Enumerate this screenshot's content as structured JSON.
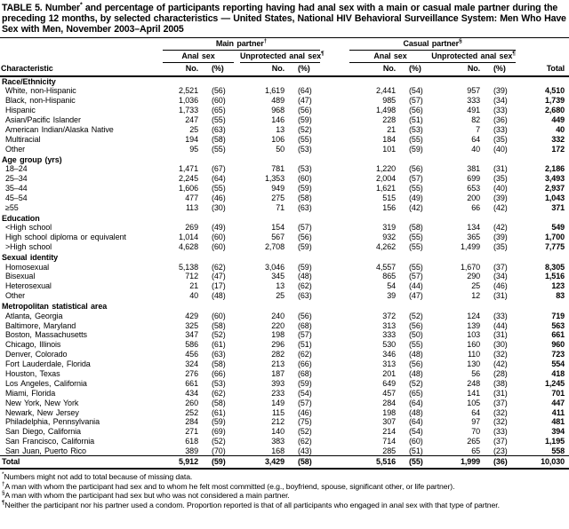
{
  "title": {
    "part1": "TABLE 5. Number",
    "sup": "*",
    "part2": " and percentage of participants reporting having had anal sex with a main or casual male partner during the preceding 12 months, by selected characteristics — United States, National HIV Behavioral Surveillance System: Men Who Have Sex with Men, November 2003–April 2005"
  },
  "table": {
    "characteristic_header": "Characteristic",
    "total_header": "Total",
    "number_header": "No.",
    "percent_header": "(%)",
    "groups": [
      {
        "label": "Main partner",
        "sup": "†"
      },
      {
        "label": "Casual partner",
        "sup": "§"
      }
    ],
    "subgroups": [
      {
        "label": "Anal sex",
        "sup": ""
      },
      {
        "label": "Unprotected anal sex",
        "sup": "¶"
      },
      {
        "label": "Anal sex",
        "sup": ""
      },
      {
        "label": "Unprotected anal sex",
        "sup": "¶"
      }
    ],
    "sections": [
      {
        "name": "Race/Ethnicity",
        "rows": [
          {
            "label": "White, non-Hispanic",
            "values": [
              "2,521",
              "(56)",
              "1,619",
              "(64)",
              "2,441",
              "(54)",
              "957",
              "(39)",
              "4,510"
            ]
          },
          {
            "label": "Black, non-Hispanic",
            "values": [
              "1,036",
              "(60)",
              "489",
              "(47)",
              "985",
              "(57)",
              "333",
              "(34)",
              "1,739"
            ]
          },
          {
            "label": "Hispanic",
            "values": [
              "1,733",
              "(65)",
              "968",
              "(56)",
              "1,498",
              "(56)",
              "491",
              "(33)",
              "2,680"
            ]
          },
          {
            "label": "Asian/Pacific Islander",
            "values": [
              "247",
              "(55)",
              "146",
              "(59)",
              "228",
              "(51)",
              "82",
              "(36)",
              "449"
            ]
          },
          {
            "label": "American Indian/Alaska Native",
            "values": [
              "25",
              "(63)",
              "13",
              "(52)",
              "21",
              "(53)",
              "7",
              "(33)",
              "40"
            ]
          },
          {
            "label": "Multiracial",
            "values": [
              "194",
              "(58)",
              "106",
              "(55)",
              "184",
              "(55)",
              "64",
              "(35)",
              "332"
            ]
          },
          {
            "label": "Other",
            "values": [
              "95",
              "(55)",
              "50",
              "(53)",
              "101",
              "(59)",
              "40",
              "(40)",
              "172"
            ]
          }
        ]
      },
      {
        "name": "Age group (yrs)",
        "rows": [
          {
            "label": "18–24",
            "values": [
              "1,471",
              "(67)",
              "781",
              "(53)",
              "1,220",
              "(56)",
              "381",
              "(31)",
              "2,186"
            ]
          },
          {
            "label": "25–34",
            "values": [
              "2,245",
              "(64)",
              "1,353",
              "(60)",
              "2,004",
              "(57)",
              "699",
              "(35)",
              "3,493"
            ]
          },
          {
            "label": "35–44",
            "values": [
              "1,606",
              "(55)",
              "949",
              "(59)",
              "1,621",
              "(55)",
              "653",
              "(40)",
              "2,937"
            ]
          },
          {
            "label": "45–54",
            "values": [
              "477",
              "(46)",
              "275",
              "(58)",
              "515",
              "(49)",
              "200",
              "(39)",
              "1,043"
            ]
          },
          {
            "label": "≥55",
            "values": [
              "113",
              "(30)",
              "71",
              "(63)",
              "156",
              "(42)",
              "66",
              "(42)",
              "371"
            ]
          }
        ]
      },
      {
        "name": "Education",
        "rows": [
          {
            "label": "<High school",
            "values": [
              "269",
              "(49)",
              "154",
              "(57)",
              "319",
              "(58)",
              "134",
              "(42)",
              "549"
            ]
          },
          {
            "label": "High school diploma or equivalent",
            "values": [
              "1,014",
              "(60)",
              "567",
              "(56)",
              "932",
              "(55)",
              "365",
              "(39)",
              "1,700"
            ]
          },
          {
            "label": ">High school",
            "values": [
              "4,628",
              "(60)",
              "2,708",
              "(59)",
              "4,262",
              "(55)",
              "1,499",
              "(35)",
              "7,775"
            ]
          }
        ]
      },
      {
        "name": "Sexual identity",
        "rows": [
          {
            "label": "Homosexual",
            "values": [
              "5,138",
              "(62)",
              "3,046",
              "(59)",
              "4,557",
              "(55)",
              "1,670",
              "(37)",
              "8,305"
            ]
          },
          {
            "label": "Bisexual",
            "values": [
              "712",
              "(47)",
              "345",
              "(48)",
              "865",
              "(57)",
              "290",
              "(34)",
              "1,516"
            ]
          },
          {
            "label": "Heterosexual",
            "values": [
              "21",
              "(17)",
              "13",
              "(62)",
              "54",
              "(44)",
              "25",
              "(46)",
              "123"
            ]
          },
          {
            "label": "Other",
            "values": [
              "40",
              "(48)",
              "25",
              "(63)",
              "39",
              "(47)",
              "12",
              "(31)",
              "83"
            ]
          }
        ]
      },
      {
        "name": "Metropolitan statistical area",
        "rows": [
          {
            "label": "Atlanta, Georgia",
            "values": [
              "429",
              "(60)",
              "240",
              "(56)",
              "372",
              "(52)",
              "124",
              "(33)",
              "719"
            ]
          },
          {
            "label": "Baltimore, Maryland",
            "values": [
              "325",
              "(58)",
              "220",
              "(68)",
              "313",
              "(56)",
              "139",
              "(44)",
              "563"
            ]
          },
          {
            "label": "Boston, Massachusetts",
            "values": [
              "347",
              "(52)",
              "198",
              "(57)",
              "333",
              "(50)",
              "103",
              "(31)",
              "661"
            ]
          },
          {
            "label": "Chicago, Illinois",
            "values": [
              "586",
              "(61)",
              "296",
              "(51)",
              "530",
              "(55)",
              "160",
              "(30)",
              "960"
            ]
          },
          {
            "label": "Denver, Colorado",
            "values": [
              "456",
              "(63)",
              "282",
              "(62)",
              "346",
              "(48)",
              "110",
              "(32)",
              "723"
            ]
          },
          {
            "label": "Fort Lauderdale, Florida",
            "values": [
              "324",
              "(58)",
              "213",
              "(66)",
              "313",
              "(56)",
              "130",
              "(42)",
              "554"
            ]
          },
          {
            "label": "Houston, Texas",
            "values": [
              "276",
              "(66)",
              "187",
              "(68)",
              "201",
              "(48)",
              "56",
              "(28)",
              "418"
            ]
          },
          {
            "label": "Los Angeles, California",
            "values": [
              "661",
              "(53)",
              "393",
              "(59)",
              "649",
              "(52)",
              "248",
              "(38)",
              "1,245"
            ]
          },
          {
            "label": "Miami, Florida",
            "values": [
              "434",
              "(62)",
              "233",
              "(54)",
              "457",
              "(65)",
              "141",
              "(31)",
              "701"
            ]
          },
          {
            "label": "New York, New York",
            "values": [
              "260",
              "(58)",
              "149",
              "(57)",
              "284",
              "(64)",
              "105",
              "(37)",
              "447"
            ]
          },
          {
            "label": "Newark, New Jersey",
            "values": [
              "252",
              "(61)",
              "115",
              "(46)",
              "198",
              "(48)",
              "64",
              "(32)",
              "411"
            ]
          },
          {
            "label": "Philadelphia, Pennsylvania",
            "values": [
              "284",
              "(59)",
              "212",
              "(75)",
              "307",
              "(64)",
              "97",
              "(32)",
              "481"
            ]
          },
          {
            "label": "San Diego, California",
            "values": [
              "271",
              "(69)",
              "140",
              "(52)",
              "214",
              "(54)",
              "70",
              "(33)",
              "394"
            ]
          },
          {
            "label": "San Francisco, California",
            "values": [
              "618",
              "(52)",
              "383",
              "(62)",
              "714",
              "(60)",
              "265",
              "(37)",
              "1,195"
            ]
          },
          {
            "label": "San Juan, Puerto Rico",
            "values": [
              "389",
              "(70)",
              "168",
              "(43)",
              "285",
              "(51)",
              "65",
              "(23)",
              "558"
            ]
          }
        ]
      }
    ],
    "total_row": {
      "label": "Total",
      "values": [
        "5,912",
        "(59)",
        "3,429",
        "(58)",
        "5,516",
        "(55)",
        "1,999",
        "(36)",
        "10,030"
      ]
    }
  },
  "footnotes": [
    {
      "marker": "*",
      "text": "Numbers might not add to total because of missing data."
    },
    {
      "marker": "†",
      "text": "A man with whom the participant had sex and to whom he felt most committed (e.g., boyfriend, spouse, significant other, or life partner)."
    },
    {
      "marker": "§",
      "text": "A man with whom the participant had sex but who was not considered a main partner."
    },
    {
      "marker": "¶",
      "text": "Neither the participant nor his partner used a condom. Proportion reported is that of all participants who engaged in anal sex with that type of partner."
    }
  ]
}
